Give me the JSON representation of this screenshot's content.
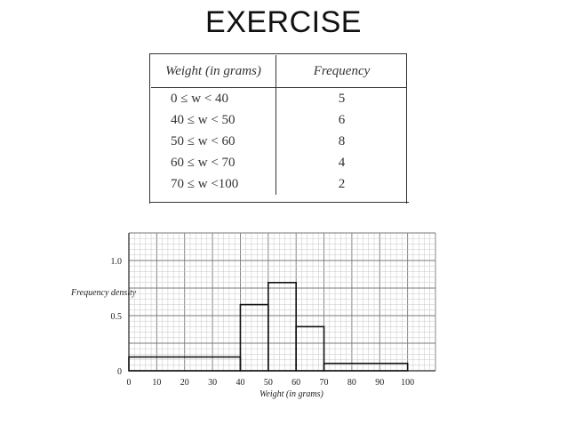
{
  "title": "EXERCISE",
  "table": {
    "headers": [
      "Weight (in grams)",
      "Frequency"
    ],
    "rows": [
      {
        "interval": "0 ≤ w < 40",
        "frequency": "5"
      },
      {
        "interval": "40 ≤ w < 50",
        "frequency": "6"
      },
      {
        "interval": "50 ≤ w < 60",
        "frequency": "8"
      },
      {
        "interval": "60 ≤ w < 70",
        "frequency": "4"
      },
      {
        "interval": "70 ≤ w <100",
        "frequency": "2"
      }
    ]
  },
  "chart_data": {
    "type": "bar",
    "subtype": "histogram",
    "xlabel": "Weight (in grams)",
    "ylabel": "Frequency density",
    "xlim": [
      0,
      110
    ],
    "ylim": [
      0,
      1.25
    ],
    "x_ticks": [
      "0",
      "10",
      "20",
      "30",
      "40",
      "50",
      "60",
      "70",
      "80",
      "90",
      "100"
    ],
    "y_ticks": [
      "0",
      "0.5",
      "1.0"
    ],
    "grid": true,
    "bins": [
      {
        "from": 0,
        "to": 40,
        "value": 0.125
      },
      {
        "from": 40,
        "to": 50,
        "value": 0.6
      },
      {
        "from": 50,
        "to": 60,
        "value": 0.8
      },
      {
        "from": 60,
        "to": 70,
        "value": 0.4
      },
      {
        "from": 70,
        "to": 100,
        "value": 0.0667
      }
    ],
    "colors": {
      "grid_minor": "#c6c6c6",
      "grid_major": "#7a7a7a",
      "bars": "#111111"
    }
  }
}
